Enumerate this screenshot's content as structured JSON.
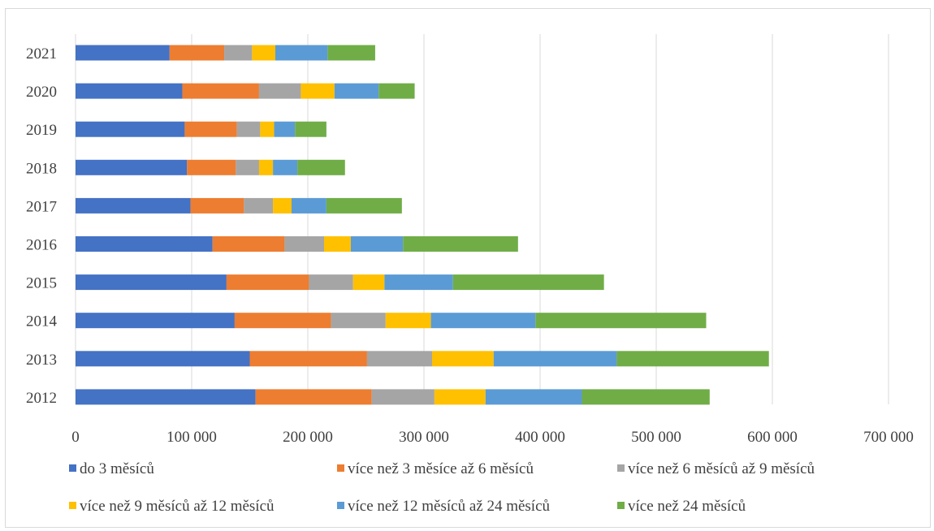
{
  "chart_data": {
    "type": "bar",
    "orientation": "horizontal",
    "stacked": true,
    "categories": [
      "2012",
      "2013",
      "2014",
      "2015",
      "2016",
      "2017",
      "2018",
      "2019",
      "2020",
      "2021"
    ],
    "xlim": [
      0,
      700000
    ],
    "xticks": [
      0,
      100000,
      200000,
      300000,
      400000,
      500000,
      600000,
      700000
    ],
    "xtick_labels": [
      "0",
      "100 000",
      "200 000",
      "300 000",
      "400 000",
      "500 000",
      "600 000",
      "700 000"
    ],
    "grid": "vertical",
    "legend_position": "bottom",
    "series": [
      {
        "name": "do 3 měsíců",
        "color": "#4472C4",
        "values": [
          155000,
          150000,
          137000,
          130000,
          118000,
          99000,
          96000,
          94000,
          92000,
          81000
        ]
      },
      {
        "name": "více než 3 měsíce až 6 měsíců",
        "color": "#ED7D31",
        "values": [
          100000,
          101000,
          83000,
          71000,
          62000,
          46000,
          42000,
          45000,
          66000,
          47000
        ]
      },
      {
        "name": "více než 6 měsíců až 9 měsíců",
        "color": "#A5A5A5",
        "values": [
          54000,
          56000,
          47000,
          38000,
          34000,
          25000,
          20000,
          20000,
          36000,
          24000
        ]
      },
      {
        "name": "více než 9 měsíců až 12 měsíců",
        "color": "#FFC000",
        "values": [
          44000,
          53000,
          39000,
          27000,
          23000,
          16000,
          12000,
          12000,
          29000,
          20000
        ]
      },
      {
        "name": "více než 12 měsíců až 24 měsíců",
        "color": "#5B9BD5",
        "values": [
          83000,
          106000,
          90000,
          59000,
          45000,
          30000,
          21000,
          18000,
          38000,
          45000
        ]
      },
      {
        "name": "více než 24 měsíců",
        "color": "#70AD47",
        "values": [
          110000,
          131000,
          147000,
          130000,
          99000,
          65000,
          41000,
          27000,
          31000,
          41000
        ]
      }
    ]
  }
}
